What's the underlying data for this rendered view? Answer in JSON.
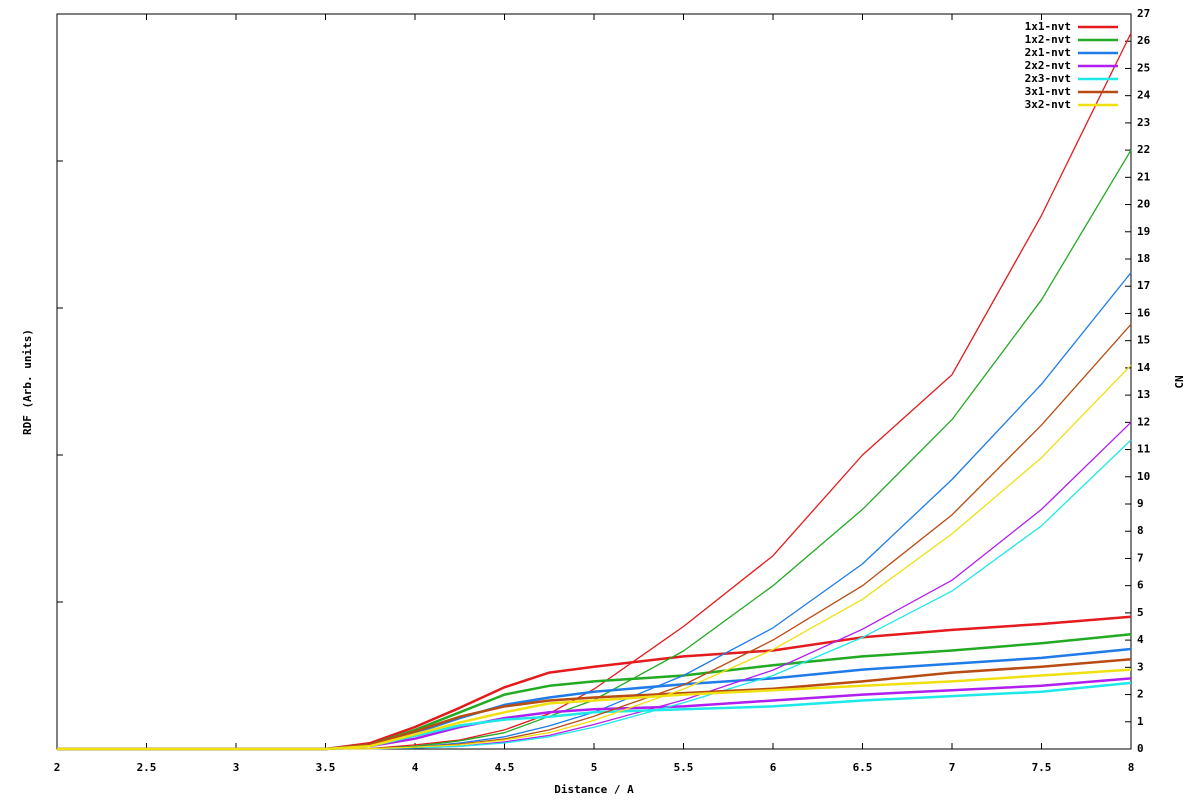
{
  "chart_data": {
    "type": "line",
    "xlabel": "Distance / A",
    "ylabel": "RDF (Arb. units)",
    "y2label": "CN",
    "x": [
      2,
      3,
      3.5,
      3.75,
      4,
      4.25,
      4.5,
      4.75,
      5,
      5.5,
      6,
      6.5,
      7,
      7.5,
      8
    ],
    "xlim": [
      2,
      8
    ],
    "xticks": [
      2,
      2.5,
      3,
      3.5,
      4,
      4.5,
      5,
      5.5,
      6,
      6.5,
      7,
      7.5,
      8
    ],
    "ylim": [
      0,
      5
    ],
    "yticks": [
      0,
      1,
      2,
      3,
      4,
      5
    ],
    "ytick_labels": false,
    "y2lim": [
      0,
      27
    ],
    "y2ticks": [
      0,
      1,
      2,
      3,
      4,
      5,
      6,
      7,
      8,
      9,
      10,
      11,
      12,
      13,
      14,
      15,
      16,
      17,
      18,
      19,
      20,
      21,
      22,
      23,
      24,
      25,
      26,
      27
    ],
    "legend": "upper right",
    "series": [
      {
        "name": "1x1-nvt",
        "color": "#e41a1c",
        "values": [
          0,
          0,
          0,
          0.04,
          0.15,
          0.28,
          0.42,
          0.52,
          0.56,
          0.63,
          0.67,
          0.76,
          0.81,
          0.85,
          0.9
        ],
        "cn_values": [
          0,
          0,
          0,
          0.02,
          0.15,
          0.33,
          0.7,
          1.3,
          2.2,
          4.5,
          7.1,
          10.8,
          13.75,
          19.6,
          26.3
        ]
      },
      {
        "name": "1x2-nvt",
        "color": "#22aa22",
        "values": [
          0,
          0,
          0,
          0.03,
          0.13,
          0.25,
          0.37,
          0.43,
          0.46,
          0.5,
          0.57,
          0.63,
          0.67,
          0.72,
          0.78
        ],
        "cn_values": [
          0,
          0,
          0,
          0.01,
          0.1,
          0.3,
          0.6,
          1.2,
          1.8,
          3.6,
          6.0,
          8.8,
          12.1,
          16.5,
          22.0
        ]
      },
      {
        "name": "2x1-nvt",
        "color": "#1e7be8",
        "values": [
          0,
          0,
          0,
          0.03,
          0.11,
          0.21,
          0.3,
          0.35,
          0.39,
          0.44,
          0.48,
          0.54,
          0.58,
          0.62,
          0.68
        ],
        "cn_values": [
          0,
          0,
          0,
          0.01,
          0.07,
          0.22,
          0.45,
          0.85,
          1.35,
          2.7,
          4.45,
          6.8,
          9.9,
          13.4,
          17.5
        ]
      },
      {
        "name": "2x2-nvt",
        "color": "#b01ef0",
        "values": [
          0,
          0,
          0,
          0.02,
          0.07,
          0.15,
          0.21,
          0.25,
          0.27,
          0.29,
          0.33,
          0.37,
          0.4,
          0.43,
          0.48
        ],
        "cn_values": [
          0,
          0,
          0,
          0.005,
          0.04,
          0.1,
          0.26,
          0.5,
          0.9,
          1.8,
          2.9,
          4.4,
          6.2,
          8.8,
          12.0
        ]
      },
      {
        "name": "2x3-nvt",
        "color": "#1ee8e8",
        "values": [
          0,
          0,
          0,
          0.02,
          0.09,
          0.16,
          0.2,
          0.22,
          0.25,
          0.27,
          0.29,
          0.33,
          0.36,
          0.39,
          0.45
        ],
        "cn_values": [
          0,
          0,
          0,
          0.005,
          0.04,
          0.1,
          0.22,
          0.45,
          0.8,
          1.7,
          2.7,
          4.1,
          5.8,
          8.2,
          11.35
        ]
      },
      {
        "name": "3x1-nvt",
        "color": "#b84c12",
        "values": [
          0,
          0,
          0,
          0.03,
          0.12,
          0.22,
          0.29,
          0.33,
          0.35,
          0.38,
          0.41,
          0.46,
          0.52,
          0.56,
          0.61
        ],
        "cn_values": [
          0,
          0,
          0,
          0.01,
          0.07,
          0.18,
          0.37,
          0.7,
          1.2,
          2.35,
          4.0,
          6.0,
          8.6,
          11.9,
          15.6
        ]
      },
      {
        "name": "3x2-nvt",
        "color": "#f0e010",
        "values": [
          0,
          0,
          0,
          0.02,
          0.1,
          0.18,
          0.25,
          0.31,
          0.33,
          0.37,
          0.4,
          0.43,
          0.46,
          0.5,
          0.54
        ],
        "cn_values": [
          0,
          0,
          0,
          0.01,
          0.07,
          0.15,
          0.33,
          0.6,
          1.05,
          2.2,
          3.65,
          5.5,
          7.9,
          10.7,
          14.1
        ]
      }
    ]
  }
}
